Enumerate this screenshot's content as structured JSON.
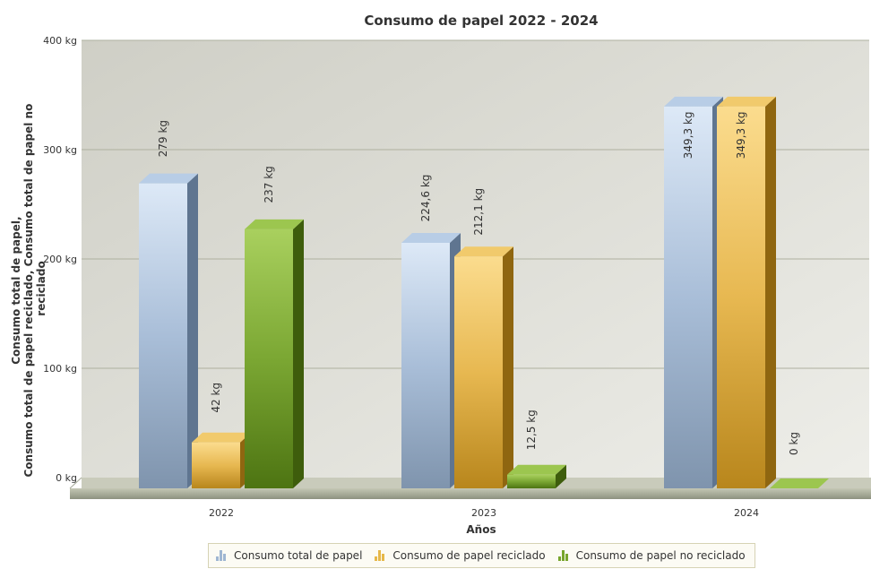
{
  "chart_data": {
    "type": "bar",
    "title": "Consumo de papel 2022 - 2024",
    "xlabel": "Años",
    "ylabel": "Consumo total de papel, Consumo total de papel reciclado, Consumo total de papel no reciclado",
    "categories": [
      "2022",
      "2023",
      "2024"
    ],
    "ylim": [
      0,
      400
    ],
    "yticks": [
      {
        "value": 0,
        "label": "0 kg"
      },
      {
        "value": 100,
        "label": "100 kg"
      },
      {
        "value": 200,
        "label": "200 kg"
      },
      {
        "value": 300,
        "label": "300 kg"
      },
      {
        "value": 400,
        "label": "400 kg"
      }
    ],
    "grid": true,
    "three_d": true,
    "legend_position": "bottom",
    "series": [
      {
        "name": "Consumo total de papel",
        "values": [
          279,
          224.6,
          349.3
        ],
        "labels": [
          "279 kg",
          "224,6 kg",
          "349,3 kg"
        ],
        "color": "#9fb6d2"
      },
      {
        "name": "Consumo de papel reciclado",
        "values": [
          42,
          212.1,
          349.3
        ],
        "labels": [
          "42 kg",
          "212,1 kg",
          "349,3 kg"
        ],
        "color": "#e6b84a"
      },
      {
        "name": "Consumo de papel no reciclado",
        "values": [
          237,
          12.5,
          0
        ],
        "labels": [
          "237 kg",
          "12,5 kg",
          "0 kg"
        ],
        "color": "#78a52c"
      }
    ]
  }
}
